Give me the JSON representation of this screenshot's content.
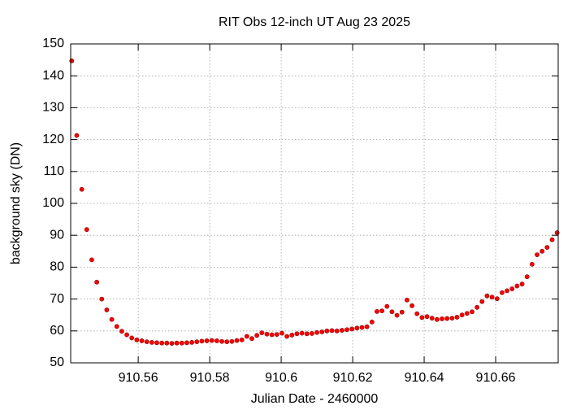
{
  "chart_data": {
    "type": "scatter",
    "title": "RIT Obs 12-inch UT Aug 23 2025",
    "x_label": "Julian Date - 2460000",
    "y_label": "background sky (DN)",
    "xlim": [
      910.5411,
      910.6775
    ],
    "ylim": [
      50,
      150
    ],
    "xticks": [
      910.56,
      910.58,
      910.6,
      910.62,
      910.64,
      910.66
    ],
    "yticks": [
      50,
      60,
      70,
      80,
      90,
      100,
      110,
      120,
      130,
      140,
      150
    ],
    "grid": true,
    "series": [
      {
        "color": "#ff0000",
        "x": [
          910.5414,
          910.5428,
          910.5442,
          910.5456,
          910.547,
          910.5484,
          910.5498,
          910.5512,
          910.5526,
          910.554,
          910.5554,
          910.5568,
          910.5582,
          910.5596,
          910.561,
          910.5624,
          910.5638,
          910.5652,
          910.5666,
          910.568,
          910.5694,
          910.5708,
          910.5722,
          910.5736,
          910.575,
          910.5764,
          910.5778,
          910.5792,
          910.5806,
          910.582,
          910.5834,
          910.5848,
          910.5862,
          910.5876,
          910.589,
          910.5904,
          910.5918,
          910.5932,
          910.5946,
          910.596,
          910.5974,
          910.5988,
          910.6002,
          910.6016,
          910.603,
          910.6044,
          910.6058,
          910.6072,
          910.6086,
          910.61,
          910.6114,
          910.6128,
          910.6142,
          910.6156,
          910.617,
          910.6184,
          910.6198,
          910.6212,
          910.6226,
          910.624,
          910.6254,
          910.6268,
          910.6282,
          910.6296,
          910.631,
          910.6324,
          910.6338,
          910.6352,
          910.6366,
          910.638,
          910.6394,
          910.6408,
          910.6422,
          910.6436,
          910.645,
          910.6464,
          910.6478,
          910.6492,
          910.6506,
          910.652,
          910.6534,
          910.6548,
          910.6562,
          910.6576,
          910.659,
          910.6604,
          910.6618,
          910.6632,
          910.6646,
          910.666,
          910.6674,
          910.6688,
          910.6702,
          910.6716,
          910.673,
          910.6744,
          910.6758,
          910.6772
        ],
        "values": [
          144.7,
          121.3,
          104.4,
          91.8,
          82.3,
          75.3,
          70.0,
          66.6,
          63.6,
          61.4,
          59.9,
          58.8,
          57.8,
          57.2,
          56.9,
          56.6,
          56.4,
          56.3,
          56.2,
          56.2,
          56.1,
          56.2,
          56.2,
          56.3,
          56.4,
          56.6,
          56.8,
          56.9,
          57.0,
          56.9,
          56.7,
          56.6,
          56.7,
          57.0,
          57.2,
          58.3,
          57.6,
          58.6,
          59.4,
          59.0,
          58.8,
          58.9,
          59.3,
          58.3,
          58.7,
          59.1,
          59.3,
          59.1,
          59.2,
          59.5,
          59.7,
          60.0,
          60.1,
          60.0,
          60.2,
          60.4,
          60.6,
          60.9,
          61.1,
          61.3,
          62.8,
          66.1,
          66.3,
          67.7,
          66.0,
          64.9,
          65.9,
          69.7,
          67.9,
          65.4,
          64.2,
          64.5,
          64.0,
          63.6,
          63.8,
          63.9,
          64.0,
          64.3,
          65.0,
          65.5,
          66.0,
          67.4,
          69.2,
          71.0,
          70.6,
          70.1,
          72.0,
          72.6,
          73.2,
          74.1,
          74.7,
          77.0,
          80.9,
          83.9,
          85.0,
          86.2,
          88.6,
          90.8
        ]
      }
    ]
  }
}
